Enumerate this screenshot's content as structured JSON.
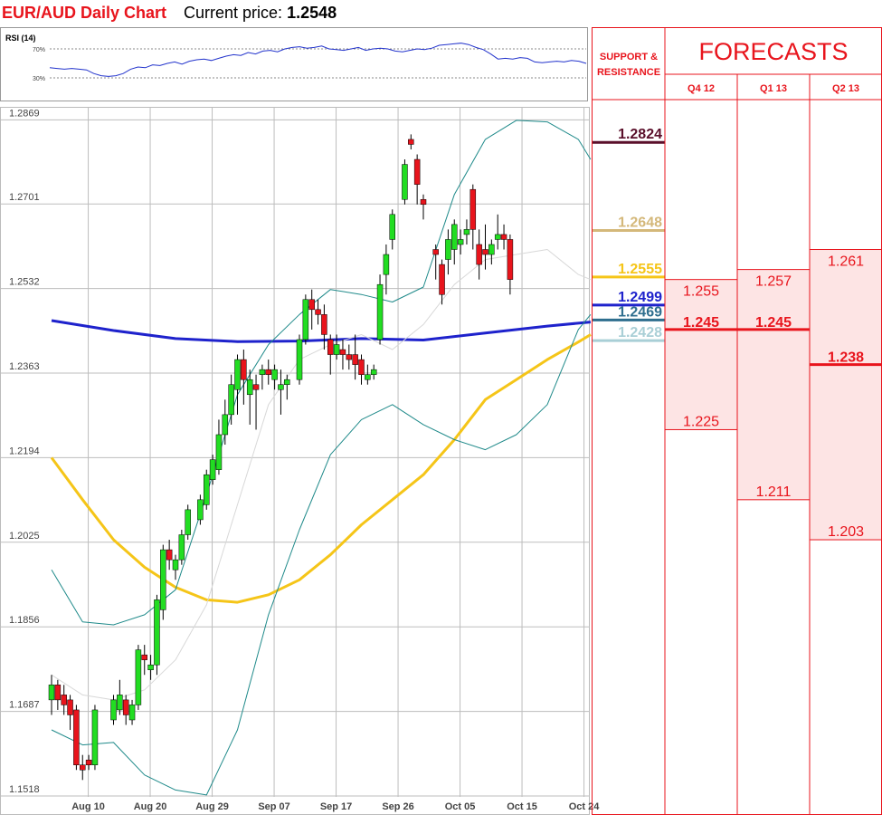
{
  "header": {
    "title": "EUR/AUD Daily Chart",
    "price_caption": "Current price:",
    "price_value": "1.2548"
  },
  "rsi": {
    "label": "RSI (14)",
    "levels": [
      "70%",
      "30%"
    ],
    "values": [
      44,
      43,
      42,
      43,
      42,
      41,
      36,
      33,
      32,
      33,
      36,
      42,
      45,
      44,
      48,
      47,
      50,
      52,
      49,
      53,
      55,
      56,
      54,
      57,
      60,
      62,
      61,
      65,
      63,
      67,
      68,
      66,
      70,
      72,
      73,
      71,
      72,
      74,
      70,
      69,
      68,
      70,
      72,
      68,
      70,
      71,
      70,
      67,
      66,
      68,
      70,
      69,
      71,
      75,
      76,
      77,
      78,
      76,
      72,
      69,
      63,
      56,
      57,
      56,
      58,
      57,
      52,
      51,
      52,
      53,
      52,
      54,
      53,
      50
    ]
  },
  "colors": {
    "title": "#e8141c",
    "up_candle": "#22dd22",
    "down_candle": "#e8141c",
    "ma_blue": "#1e22cc",
    "ma_yellow": "#f5c518",
    "bollinger": "#1f8a8a",
    "forecast_red": "#e8141c",
    "forecast_fill": "#fde4e4"
  },
  "chart_data": {
    "type": "candlestick",
    "title": "EUR/AUD Daily Chart",
    "ylim": [
      1.148,
      1.2895
    ],
    "y_ticks": [
      "1.2869",
      "1.2701",
      "1.2532",
      "1.2363",
      "1.2194",
      "1.2025",
      "1.1856",
      "1.1687",
      "1.1518"
    ],
    "x_tick_labels": [
      "Aug 10",
      "Aug 20",
      "Aug 29",
      "Sep 07",
      "Sep 17",
      "Sep 26",
      "Oct 05",
      "Oct 15",
      "Oct 24"
    ],
    "x_tick_index": [
      3,
      13,
      23,
      33,
      43,
      53,
      63,
      73,
      83
    ],
    "grid": true,
    "candles": [
      [
        1.171,
        1.174,
        1.168,
        1.176
      ],
      [
        1.174,
        1.171,
        1.169,
        1.175
      ],
      [
        1.172,
        1.17,
        1.168,
        1.174
      ],
      [
        1.171,
        1.168,
        1.165,
        1.172
      ],
      [
        1.169,
        1.158,
        1.157,
        1.17
      ],
      [
        1.158,
        1.157,
        1.155,
        1.16
      ],
      [
        1.159,
        1.158,
        1.157,
        1.16
      ],
      [
        1.158,
        1.169,
        1.157,
        1.17
      ],
      [
        1.167,
        1.171,
        1.166,
        1.172
      ],
      [
        1.169,
        1.172,
        1.168,
        1.175
      ],
      [
        1.171,
        1.168,
        1.166,
        1.172
      ],
      [
        1.167,
        1.17,
        1.166,
        1.171
      ],
      [
        1.17,
        1.181,
        1.169,
        1.182
      ],
      [
        1.18,
        1.179,
        1.176,
        1.182
      ],
      [
        1.177,
        1.178,
        1.175,
        1.18
      ],
      [
        1.178,
        1.191,
        1.176,
        1.192
      ],
      [
        1.189,
        1.201,
        1.187,
        1.202
      ],
      [
        1.201,
        1.199,
        1.197,
        1.203
      ],
      [
        1.197,
        1.199,
        1.195,
        1.2
      ],
      [
        1.199,
        1.204,
        1.198,
        1.205
      ],
      [
        1.204,
        1.209,
        1.203,
        1.21
      ],
      [
        1.207,
        1.211,
        1.206,
        1.212
      ],
      [
        1.21,
        1.216,
        1.209,
        1.217
      ],
      [
        1.215,
        1.219,
        1.214,
        1.22
      ],
      [
        1.217,
        1.224,
        1.216,
        1.227
      ],
      [
        1.224,
        1.228,
        1.222,
        1.231
      ],
      [
        1.228,
        1.234,
        1.226,
        1.236
      ],
      [
        1.233,
        1.239,
        1.228,
        1.24
      ],
      [
        1.239,
        1.235,
        1.23,
        1.241
      ],
      [
        1.232,
        1.235,
        1.226,
        1.237
      ],
      [
        1.234,
        1.233,
        1.225,
        1.236
      ],
      [
        1.236,
        1.237,
        1.233,
        1.238
      ],
      [
        1.237,
        1.236,
        1.234,
        1.239
      ],
      [
        1.235,
        1.237,
        1.233,
        1.238
      ],
      [
        1.233,
        1.234,
        1.228,
        1.237
      ],
      [
        1.234,
        1.235,
        1.231,
        1.236
      ],
      [
        1.235,
        1.243,
        1.234,
        1.244
      ],
      [
        1.243,
        1.251,
        1.242,
        1.252
      ],
      [
        1.251,
        1.249,
        1.245,
        1.253
      ],
      [
        1.249,
        1.248,
        1.246,
        1.251
      ],
      [
        1.248,
        1.244,
        1.241,
        1.25
      ],
      [
        1.243,
        1.24,
        1.236,
        1.244
      ],
      [
        1.24,
        1.242,
        1.239,
        1.244
      ],
      [
        1.241,
        1.24,
        1.237,
        1.243
      ],
      [
        1.24,
        1.239,
        1.237,
        1.242
      ],
      [
        1.24,
        1.238,
        1.235,
        1.244
      ],
      [
        1.239,
        1.236,
        1.234,
        1.24
      ],
      [
        1.235,
        1.236,
        1.234,
        1.238
      ],
      [
        1.236,
        1.237,
        1.235,
        1.238
      ],
      [
        1.243,
        1.254,
        1.242,
        1.256
      ],
      [
        1.256,
        1.26,
        1.252,
        1.262
      ],
      [
        1.263,
        1.268,
        1.261,
        1.269
      ],
      [
        1.271,
        1.278,
        1.27,
        1.279
      ],
      [
        1.283,
        1.282,
        1.281,
        1.284
      ],
      [
        1.279,
        1.274,
        1.27,
        1.28
      ],
      [
        1.271,
        1.27,
        1.267,
        1.272
      ],
      [
        1.261,
        1.26,
        1.255,
        1.262
      ],
      [
        1.258,
        1.252,
        1.25,
        1.259
      ],
      [
        1.259,
        1.263,
        1.256,
        1.265
      ],
      [
        1.261,
        1.266,
        1.258,
        1.267
      ],
      [
        1.262,
        1.263,
        1.26,
        1.265
      ],
      [
        1.264,
        1.265,
        1.262,
        1.267
      ],
      [
        1.273,
        1.265,
        1.261,
        1.274
      ],
      [
        1.262,
        1.258,
        1.255,
        1.265
      ],
      [
        1.261,
        1.26,
        1.257,
        1.266
      ],
      [
        1.26,
        1.262,
        1.258,
        1.263
      ],
      [
        1.263,
        1.264,
        1.261,
        1.268
      ],
      [
        1.264,
        1.263,
        1.261,
        1.266
      ],
      [
        1.263,
        1.255,
        1.252,
        1.264
      ]
    ],
    "candle_x_index": [
      0,
      1,
      2,
      3,
      4,
      5,
      6,
      7,
      10,
      11,
      12,
      13,
      14,
      15,
      16,
      17,
      18,
      19,
      20,
      21,
      22,
      24,
      25,
      26,
      27,
      28,
      29,
      30,
      31,
      32,
      33,
      34,
      35,
      36,
      37,
      38,
      40,
      41,
      42,
      43,
      44,
      45,
      46,
      47,
      48,
      49,
      50,
      51,
      52,
      53,
      54,
      55,
      57,
      58,
      59,
      60,
      62,
      63,
      64,
      65,
      66,
      67,
      68,
      69,
      70,
      71,
      72,
      73,
      74
    ],
    "series": [
      {
        "name": "",
        "style": "ma_blue",
        "x": [
          0,
          10,
          20,
          30,
          40,
          50,
          60,
          70,
          80,
          87
        ],
        "y": [
          1.2468,
          1.2448,
          1.2432,
          1.2426,
          1.2427,
          1.2432,
          1.2429,
          1.2443,
          1.2457,
          1.2465
        ]
      },
      {
        "name": "",
        "style": "ma_yellow",
        "x": [
          0,
          5,
          10,
          15,
          20,
          25,
          30,
          35,
          40,
          45,
          50,
          55,
          60,
          65,
          70,
          75,
          80,
          85,
          87
        ],
        "y": [
          1.2194,
          1.211,
          1.203,
          1.1975,
          1.1935,
          1.191,
          1.1905,
          1.192,
          1.195,
          1.2,
          1.206,
          1.211,
          1.216,
          1.223,
          1.231,
          1.235,
          1.239,
          1.2425,
          1.244
        ]
      },
      {
        "name": "",
        "style": "bollinger",
        "x": [
          0,
          5,
          10,
          15,
          20,
          25,
          30,
          35,
          40,
          45,
          50,
          55,
          60,
          65,
          70,
          75,
          80,
          85,
          87
        ],
        "y": [
          1.197,
          1.1866,
          1.186,
          1.188,
          1.193,
          1.212,
          1.232,
          1.242,
          1.248,
          1.253,
          1.252,
          1.2505,
          1.2535,
          1.272,
          1.283,
          1.2868,
          1.2865,
          1.283,
          1.279
        ]
      },
      {
        "name": "",
        "style": "bollinger",
        "x": [
          0,
          5,
          10,
          15,
          20,
          25,
          30,
          35,
          40,
          45,
          50,
          55,
          60,
          65,
          70,
          75,
          80,
          85,
          87
        ],
        "y": [
          1.165,
          1.162,
          1.1625,
          1.156,
          1.153,
          1.152,
          1.165,
          1.188,
          1.205,
          1.22,
          1.227,
          1.23,
          1.226,
          1.223,
          1.221,
          1.224,
          1.23,
          1.245,
          1.248
        ]
      },
      {
        "name": "",
        "style": "sma_grey",
        "x": [
          0,
          5,
          10,
          15,
          20,
          25,
          30,
          35,
          40,
          45,
          50,
          55,
          60,
          65,
          70,
          75,
          80,
          85,
          87
        ],
        "y": [
          1.176,
          1.172,
          1.171,
          1.173,
          1.179,
          1.19,
          1.21,
          1.23,
          1.239,
          1.242,
          1.244,
          1.241,
          1.246,
          1.254,
          1.259,
          1.26,
          1.261,
          1.256,
          1.255
        ]
      }
    ],
    "support_resistance": [
      {
        "label": "1.2824",
        "value": 1.2824,
        "color": "#5a0f2a"
      },
      {
        "label": "1.2648",
        "value": 1.2648,
        "color": "#d4b87a"
      },
      {
        "label": "1.2555",
        "value": 1.2555,
        "color": "#f5c518"
      },
      {
        "label": "1.2499",
        "value": 1.2499,
        "color": "#1e22cc"
      },
      {
        "label": "1.2469",
        "value": 1.2469,
        "color": "#2e6e8e"
      },
      {
        "label": "1.2428",
        "value": 1.2428,
        "color": "#a9cfd6"
      }
    ],
    "forecasts": {
      "heading": "FORECASTS",
      "sr_heading_line1": "SUPPORT &",
      "sr_heading_line2": "RESISTANCE",
      "columns": [
        {
          "label": "Q4 12",
          "high": 1.255,
          "mid": 1.245,
          "low": 1.225,
          "high_label": "1.255",
          "mid_label": "1.245",
          "low_label": "1.225"
        },
        {
          "label": "Q1 13",
          "high": 1.257,
          "mid": 1.245,
          "low": 1.211,
          "high_label": "1.257",
          "mid_label": "1.245",
          "low_label": "1.211"
        },
        {
          "label": "Q2 13",
          "high": 1.261,
          "mid": 1.238,
          "low": 1.203,
          "high_label": "1.261",
          "mid_label": "1.238",
          "low_label": "1.203"
        }
      ]
    }
  }
}
